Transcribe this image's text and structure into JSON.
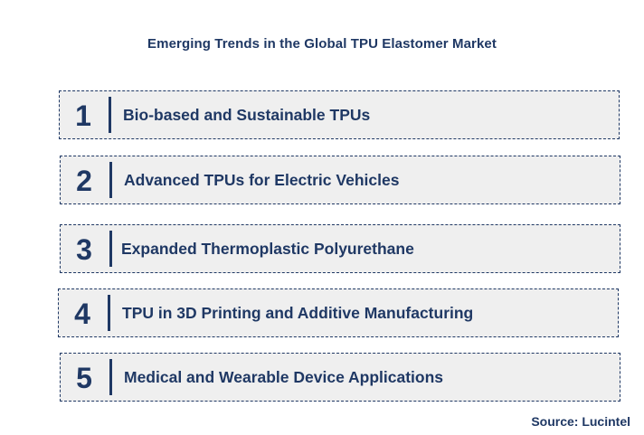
{
  "title": "Emerging Trends in the Global TPU Elastomer Market",
  "trends": [
    {
      "number": "1",
      "label": "Bio-based and Sustainable TPUs"
    },
    {
      "number": "2",
      "label": "Advanced TPUs for Electric Vehicles"
    },
    {
      "number": "3",
      "label": "Expanded Thermoplastic Polyurethane"
    },
    {
      "number": "4",
      "label": "TPU in 3D Printing and Additive Manufacturing"
    },
    {
      "number": "5",
      "label": "Medical and Wearable Device Applications"
    }
  ],
  "source": "Source: Lucintel",
  "colors": {
    "text": "#1f3864",
    "box_fill": "#efefef",
    "border": "#1f3864"
  }
}
